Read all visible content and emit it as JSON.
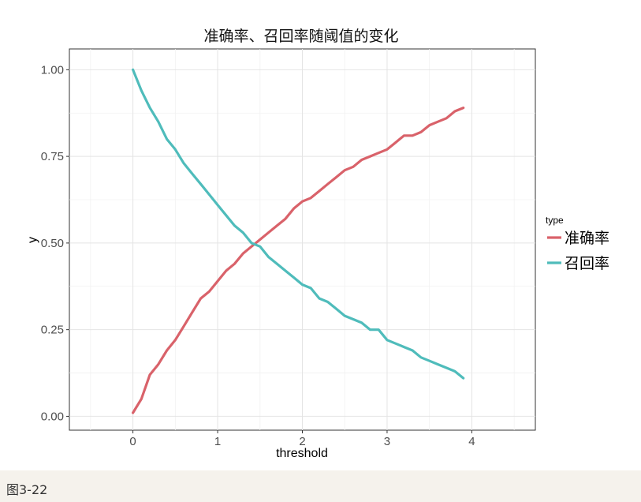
{
  "caption": "图3-22",
  "chart_data": {
    "type": "line",
    "title": "准确率、召回率随阈值的变化",
    "xlabel": "threshold",
    "ylabel": "y",
    "xlim": [
      -0.75,
      4.75
    ],
    "ylim": [
      -0.04,
      1.06
    ],
    "x_ticks": [
      0,
      1,
      2,
      3,
      4
    ],
    "x_tick_labels": [
      "0",
      "1",
      "2",
      "3",
      "4"
    ],
    "y_ticks": [
      0,
      0.25,
      0.5,
      0.75,
      1.0
    ],
    "y_tick_labels": [
      "0.00",
      "0.25",
      "0.50",
      "0.75",
      "1.00"
    ],
    "grid": true,
    "legend": {
      "title": "type",
      "position": "right"
    },
    "x": [
      0.0,
      0.1,
      0.2,
      0.3,
      0.4,
      0.5,
      0.6,
      0.7,
      0.8,
      0.9,
      1.0,
      1.1,
      1.2,
      1.3,
      1.4,
      1.5,
      1.6,
      1.7,
      1.8,
      1.9,
      2.0,
      2.1,
      2.2,
      2.3,
      2.4,
      2.5,
      2.6,
      2.7,
      2.8,
      2.9,
      3.0,
      3.1,
      3.2,
      3.3,
      3.4,
      3.5,
      3.6,
      3.7,
      3.8,
      3.9
    ],
    "series": [
      {
        "name": "准确率",
        "color": "#d9626a",
        "values": [
          0.01,
          0.05,
          0.12,
          0.15,
          0.19,
          0.22,
          0.26,
          0.3,
          0.34,
          0.36,
          0.39,
          0.42,
          0.44,
          0.47,
          0.49,
          0.51,
          0.53,
          0.55,
          0.57,
          0.6,
          0.62,
          0.63,
          0.65,
          0.67,
          0.69,
          0.71,
          0.72,
          0.74,
          0.75,
          0.76,
          0.77,
          0.79,
          0.81,
          0.81,
          0.82,
          0.84,
          0.85,
          0.86,
          0.88,
          0.89
        ]
      },
      {
        "name": "召回率",
        "color": "#4fbcbb",
        "values": [
          1.0,
          0.94,
          0.89,
          0.85,
          0.8,
          0.77,
          0.73,
          0.7,
          0.67,
          0.64,
          0.61,
          0.58,
          0.55,
          0.53,
          0.5,
          0.49,
          0.46,
          0.44,
          0.42,
          0.4,
          0.38,
          0.37,
          0.34,
          0.33,
          0.31,
          0.29,
          0.28,
          0.27,
          0.25,
          0.25,
          0.22,
          0.21,
          0.2,
          0.19,
          0.17,
          0.16,
          0.15,
          0.14,
          0.13,
          0.11
        ]
      }
    ]
  }
}
